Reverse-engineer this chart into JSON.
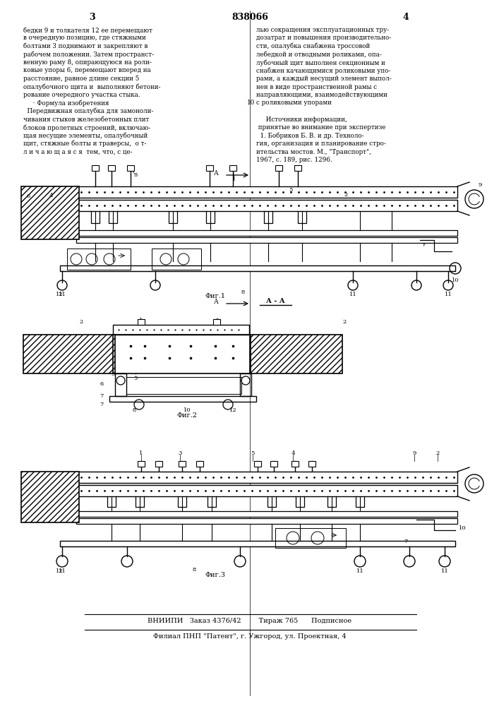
{
  "page_num_left": "3",
  "page_num_right": "4",
  "patent_num": "838066",
  "text_left_lines": [
    "бедки 9 и толкателя 12 ее перемещают",
    "в очередную позицию, где стяжными",
    "болтами 3 поднимают и закрепляют в",
    "рабочем положении. Затем пространст-",
    "венную раму 8, опирающуюся на роли-",
    "ковые упоры 6, перемещают вперед на",
    "расстояние, равное длине секции 5",
    "опалубочного щита и  выполняют бетони-",
    "рование очередного участка стыка.",
    "     · Формула изобретения",
    "  Передвижная опалубка для замоноли-",
    "чивания стыков железобетонных плит",
    "блоков пролетных строений, включаю-",
    "щая несущие элементы, опалубочный",
    "щит, стяжные болты и траверсы,  о т-",
    "л и ч а ю щ а я с я  тем, что, с це-"
  ],
  "text_right_lines": [
    "лью сокращения эксплуатационных тру-",
    "дозатрат и повышения производительно-",
    "сти, опалубка снабжена троссовой",
    "лебедкой и отводными роликами, опа-",
    "лубочный щит выполнен секционным и",
    "снабжен качающимися роликовыми упо-",
    "рами, а каждый несущий элемент выпол-",
    "нен в виде пространственной рамы с",
    "направляющими, взаимодействующими",
    "с роликовыми упорами",
    "",
    "     Источники информации,",
    " принятые во внимание при экспертизе",
    "  1. Бобриков Б. В. и др. Техноло-",
    "гия, организация и планирование стро-",
    "ительства мостов. М., \"Транспорт\",",
    "1967, с. 189, рис. 1296."
  ],
  "col_number": "10",
  "fig1_label": "Фиг.1",
  "fig2_label": "Фиг.2",
  "fig3_label": "Фиг.3",
  "aa_label": "А - А",
  "vniiipi_text": "ВНИИПИ   Заказ 4376/42        Тираж 765      Подписное",
  "filial_text": "Филиал ПНП \"Патент\", г. Ужгород, ул. Проектная, 4",
  "bg_color": "#ffffff",
  "line_color": "#000000",
  "text_color": "#000000"
}
